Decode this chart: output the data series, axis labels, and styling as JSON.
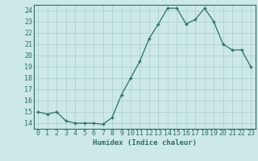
{
  "title": "",
  "xlabel": "Humidex (Indice chaleur)",
  "x": [
    0,
    1,
    2,
    3,
    4,
    5,
    6,
    7,
    8,
    9,
    10,
    11,
    12,
    13,
    14,
    15,
    16,
    17,
    18,
    19,
    20,
    21,
    22,
    23
  ],
  "y": [
    15,
    14.8,
    15,
    14.2,
    14,
    14,
    14,
    13.9,
    14.5,
    16.5,
    18,
    19.5,
    21.5,
    22.8,
    24.2,
    24.2,
    22.8,
    23.2,
    24.2,
    23.0,
    21.0,
    20.5,
    20.5,
    19.0
  ],
  "line_color": "#2e7060",
  "marker": "+",
  "marker_size": 3.5,
  "marker_lw": 1.0,
  "line_width": 0.9,
  "bg_color": "#cce8e8",
  "grid_major_color": "#aacece",
  "grid_minor_color": "#bbdddd",
  "ylim": [
    13.5,
    24.5
  ],
  "xlim": [
    -0.5,
    23.5
  ],
  "yticks": [
    14,
    15,
    16,
    17,
    18,
    19,
    20,
    21,
    22,
    23,
    24
  ],
  "xticks": [
    0,
    1,
    2,
    3,
    4,
    5,
    6,
    7,
    8,
    9,
    10,
    11,
    12,
    13,
    14,
    15,
    16,
    17,
    18,
    19,
    20,
    21,
    22,
    23
  ],
  "tick_color": "#2e7060",
  "spine_color": "#2e7060",
  "label_fontsize": 6.5,
  "tick_fontsize": 6.0,
  "xlabel_fontweight": "bold"
}
